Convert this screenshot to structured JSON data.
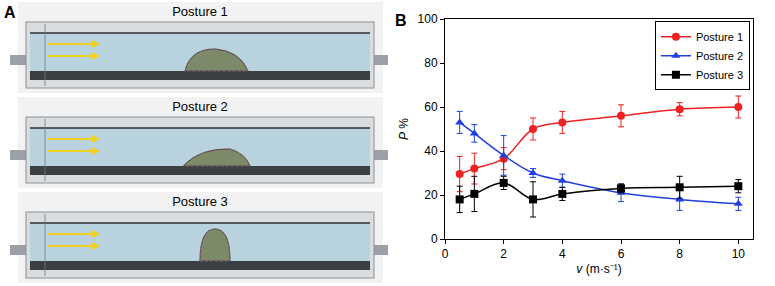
{
  "panel_a": {
    "label": "A",
    "postures": [
      "Posture 1",
      "Posture 2",
      "Posture 3"
    ]
  },
  "chart_data": {
    "type": "line",
    "annotations": [
      {
        "text": "B"
      }
    ],
    "x_label": "v (m·s⁻¹)",
    "y_label": "P %",
    "xlim": [
      0,
      10.5
    ],
    "xticks": [
      0,
      2,
      4,
      6,
      8,
      10
    ],
    "ylim": [
      0,
      100
    ],
    "yticks": [
      0,
      20,
      40,
      60,
      80,
      100
    ],
    "grid": false,
    "legend": "upper right",
    "x": [
      0.5,
      1,
      2,
      3,
      4,
      6,
      8,
      10
    ],
    "series": [
      {
        "name": "Posture 1",
        "color": "#ee2222",
        "marker": "circle",
        "line_style": "solid",
        "values": [
          29.5,
          32,
          36.5,
          50,
          53,
          56,
          59,
          60
        ],
        "error": [
          8,
          7,
          5,
          5,
          5,
          5,
          3,
          5
        ]
      },
      {
        "name": "Posture 2",
        "color": "#2040e0",
        "marker": "triangle-up",
        "line_style": "solid",
        "values": [
          53,
          48,
          38,
          30,
          26.5,
          21,
          18,
          16
        ],
        "error": [
          5,
          4,
          9,
          2,
          3,
          4,
          5,
          3
        ]
      },
      {
        "name": "Posture 3",
        "color": "#000000",
        "marker": "square",
        "line_style": "solid",
        "values": [
          18,
          20.5,
          25.5,
          18,
          20.5,
          23,
          23.5,
          24
        ],
        "error": [
          6,
          8,
          3,
          8,
          3,
          2,
          5,
          3
        ]
      }
    ]
  }
}
